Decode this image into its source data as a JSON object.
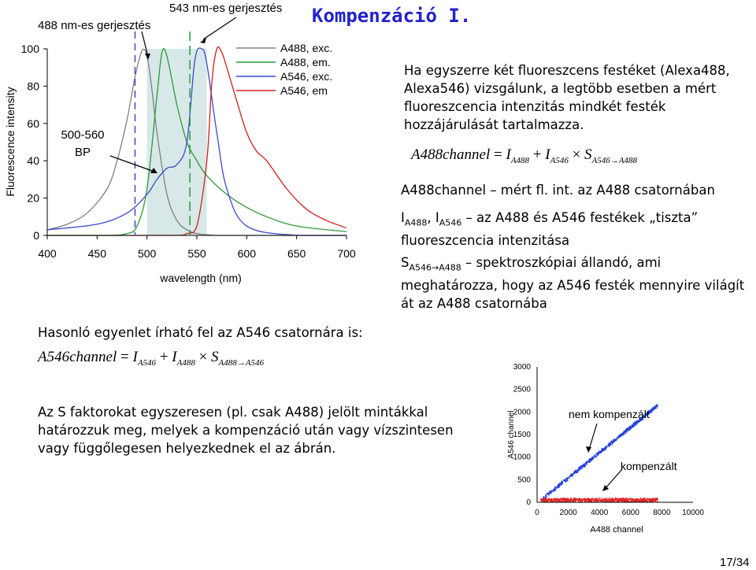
{
  "slide": {
    "title": "Kompenzáció I.",
    "intro_text": "Ha egyszerre két fluoreszcens festéket (Alexa488, Alexa546) vizsgálunk, a legtöbb esetben a mért fluoreszcencia intenzitás mindkét festék hozzájárulását tartalmazza.",
    "formula1": {
      "lhs": "A488channel",
      "eq": "=",
      "t1": "I",
      "t1_sub": "A488",
      "plus": "+",
      "t2": "I",
      "t2_sub": "A546",
      "times": "×",
      "t3": "S",
      "t3_sub": "A546→A488"
    },
    "def1": "A488channel – mért fl. int. az A488 csatornában",
    "def2_label": "I",
    "def2_sub1": "A488",
    "def2_sep": ", I",
    "def2_sub2": "A546",
    "def2_text": " – az A488 és A546 festékek „tiszta” fluoreszcencia intenzitása",
    "def3_label": "S",
    "def3_sub": "A546→A488",
    "def3_text": " – spektroszkópiai állandó, ami meghatározza, hogy az A546 festék mennyire világít át az A488 csatornába",
    "similar_text": "Hasonló egyenlet írható fel az A546 csatornára is:",
    "formula2": {
      "lhs": "A546channel",
      "eq": "=",
      "t1": "I",
      "t1_sub": "A546",
      "plus": "+",
      "t2": "I",
      "t2_sub": "A488",
      "times": "×",
      "t3": "S",
      "t3_sub": "A488→A546"
    },
    "s_factor_text": "Az S faktorokat egyszeresen (pl. csak A488) jelölt mintákkal határozzuk meg, melyek a kompenzáció után vagy vízszintesen vagy függőlegesen helyezkednek el az ábrán.",
    "page_number": "17/34"
  },
  "chart_data": [
    {
      "type": "line",
      "ylabel": "Fluorescence intensity",
      "xlabel": "wavelength (nm)",
      "xlim": [
        400,
        700
      ],
      "ylim": [
        0,
        100
      ],
      "xticks": [
        "400",
        "450",
        "500",
        "550",
        "600",
        "650",
        "700"
      ],
      "yticks": [
        "0",
        "20",
        "40",
        "60",
        "80",
        "100"
      ],
      "annotations": {
        "exc488": "488 nm-es gerjesztés",
        "exc543": "543 nm-es gerjesztés",
        "bp": "500-560",
        "bp2": "BP"
      },
      "excitation_lines": [
        488,
        543
      ],
      "bandpass": [
        500,
        560
      ],
      "series": [
        {
          "name": "A488, exc.",
          "color": "#808080",
          "x": [
            400,
            420,
            440,
            460,
            470,
            480,
            488,
            495,
            500,
            505,
            510,
            520,
            530,
            540,
            550,
            570,
            600,
            650,
            700
          ],
          "y": [
            3,
            6,
            12,
            25,
            40,
            62,
            85,
            99,
            96,
            78,
            55,
            22,
            8,
            3,
            1,
            0,
            0,
            0,
            0
          ]
        },
        {
          "name": "A488, em.",
          "color": "#2a9a3a",
          "x": [
            400,
            460,
            480,
            490,
            500,
            510,
            515,
            520,
            530,
            540,
            550,
            560,
            580,
            600,
            620,
            650,
            700
          ],
          "y": [
            0,
            0,
            1,
            5,
            25,
            75,
            98,
            96,
            70,
            50,
            40,
            32,
            22,
            15,
            10,
            5,
            2
          ]
        },
        {
          "name": "A546, exc.",
          "color": "#3b4ad0",
          "x": [
            400,
            450,
            480,
            500,
            510,
            520,
            530,
            540,
            548,
            555,
            560,
            570,
            580,
            600,
            650,
            700
          ],
          "y": [
            3,
            6,
            12,
            22,
            30,
            36,
            38,
            50,
            94,
            100,
            92,
            55,
            25,
            5,
            0,
            0
          ]
        },
        {
          "name": "A546, em",
          "color": "#d02020",
          "x": [
            400,
            520,
            540,
            550,
            560,
            565,
            570,
            575,
            580,
            590,
            600,
            610,
            620,
            640,
            660,
            680,
            700
          ],
          "y": [
            0,
            0,
            1,
            5,
            40,
            82,
            100,
            98,
            90,
            72,
            55,
            45,
            40,
            25,
            14,
            8,
            4
          ]
        }
      ]
    },
    {
      "type": "scatter",
      "xlabel": "A488 channel",
      "ylabel": "A546 channel",
      "xlim": [
        0,
        10000
      ],
      "ylim": [
        0,
        3000
      ],
      "xticks": [
        "0",
        "2000",
        "4000",
        "6000",
        "8000",
        "10000"
      ],
      "yticks": [
        "0",
        "500",
        "1000",
        "1500",
        "2000",
        "2500",
        "3000"
      ],
      "annotations": {
        "not_compensated": "nem kompenzált",
        "compensated": "kompenzált"
      },
      "series": [
        {
          "name": "nem kompenzált",
          "color": "#1f3fd8",
          "slope": 0.28,
          "x_range": [
            300,
            7700
          ],
          "y_spread": 50
        },
        {
          "name": "kompenzált",
          "color": "#e02020",
          "slope": 0.0,
          "x_range": [
            200,
            7700
          ],
          "y_base": 60,
          "y_spread": 55
        }
      ]
    }
  ]
}
